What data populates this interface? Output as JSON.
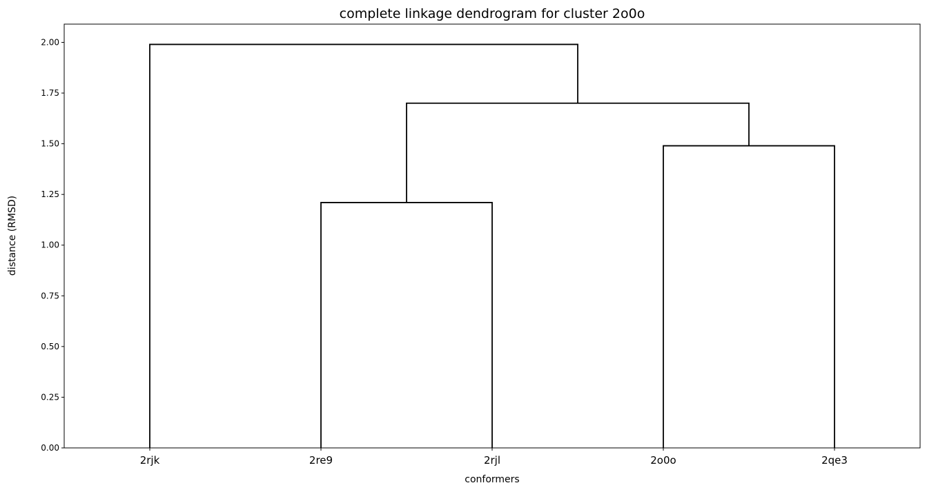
{
  "chart_data": {
    "type": "dendrogram",
    "title": "complete linkage dendrogram for cluster 2o0o",
    "xlabel": "conformers",
    "ylabel": "distance (RMSD)",
    "leaves": [
      "2rjk",
      "2re9",
      "2rjl",
      "2o0o",
      "2qe3"
    ],
    "ylim": [
      0,
      2.09
    ],
    "yticks": [
      "0.00",
      "0.25",
      "0.50",
      "0.75",
      "1.00",
      "1.25",
      "1.50",
      "1.75",
      "2.00"
    ],
    "merges": [
      {
        "left": "2re9",
        "right": "2rjl",
        "height": 1.21
      },
      {
        "left": "2o0o",
        "right": "2qe3",
        "height": 1.49
      },
      {
        "left": "(2re9, 2rjl)",
        "right": "(2o0o, 2qe3)",
        "height": 1.7
      },
      {
        "left": "2rjk",
        "right": "((2re9, 2rjl), (2o0o, 2qe3))",
        "height": 1.99
      }
    ],
    "grid": false,
    "line_color": "#000000"
  }
}
